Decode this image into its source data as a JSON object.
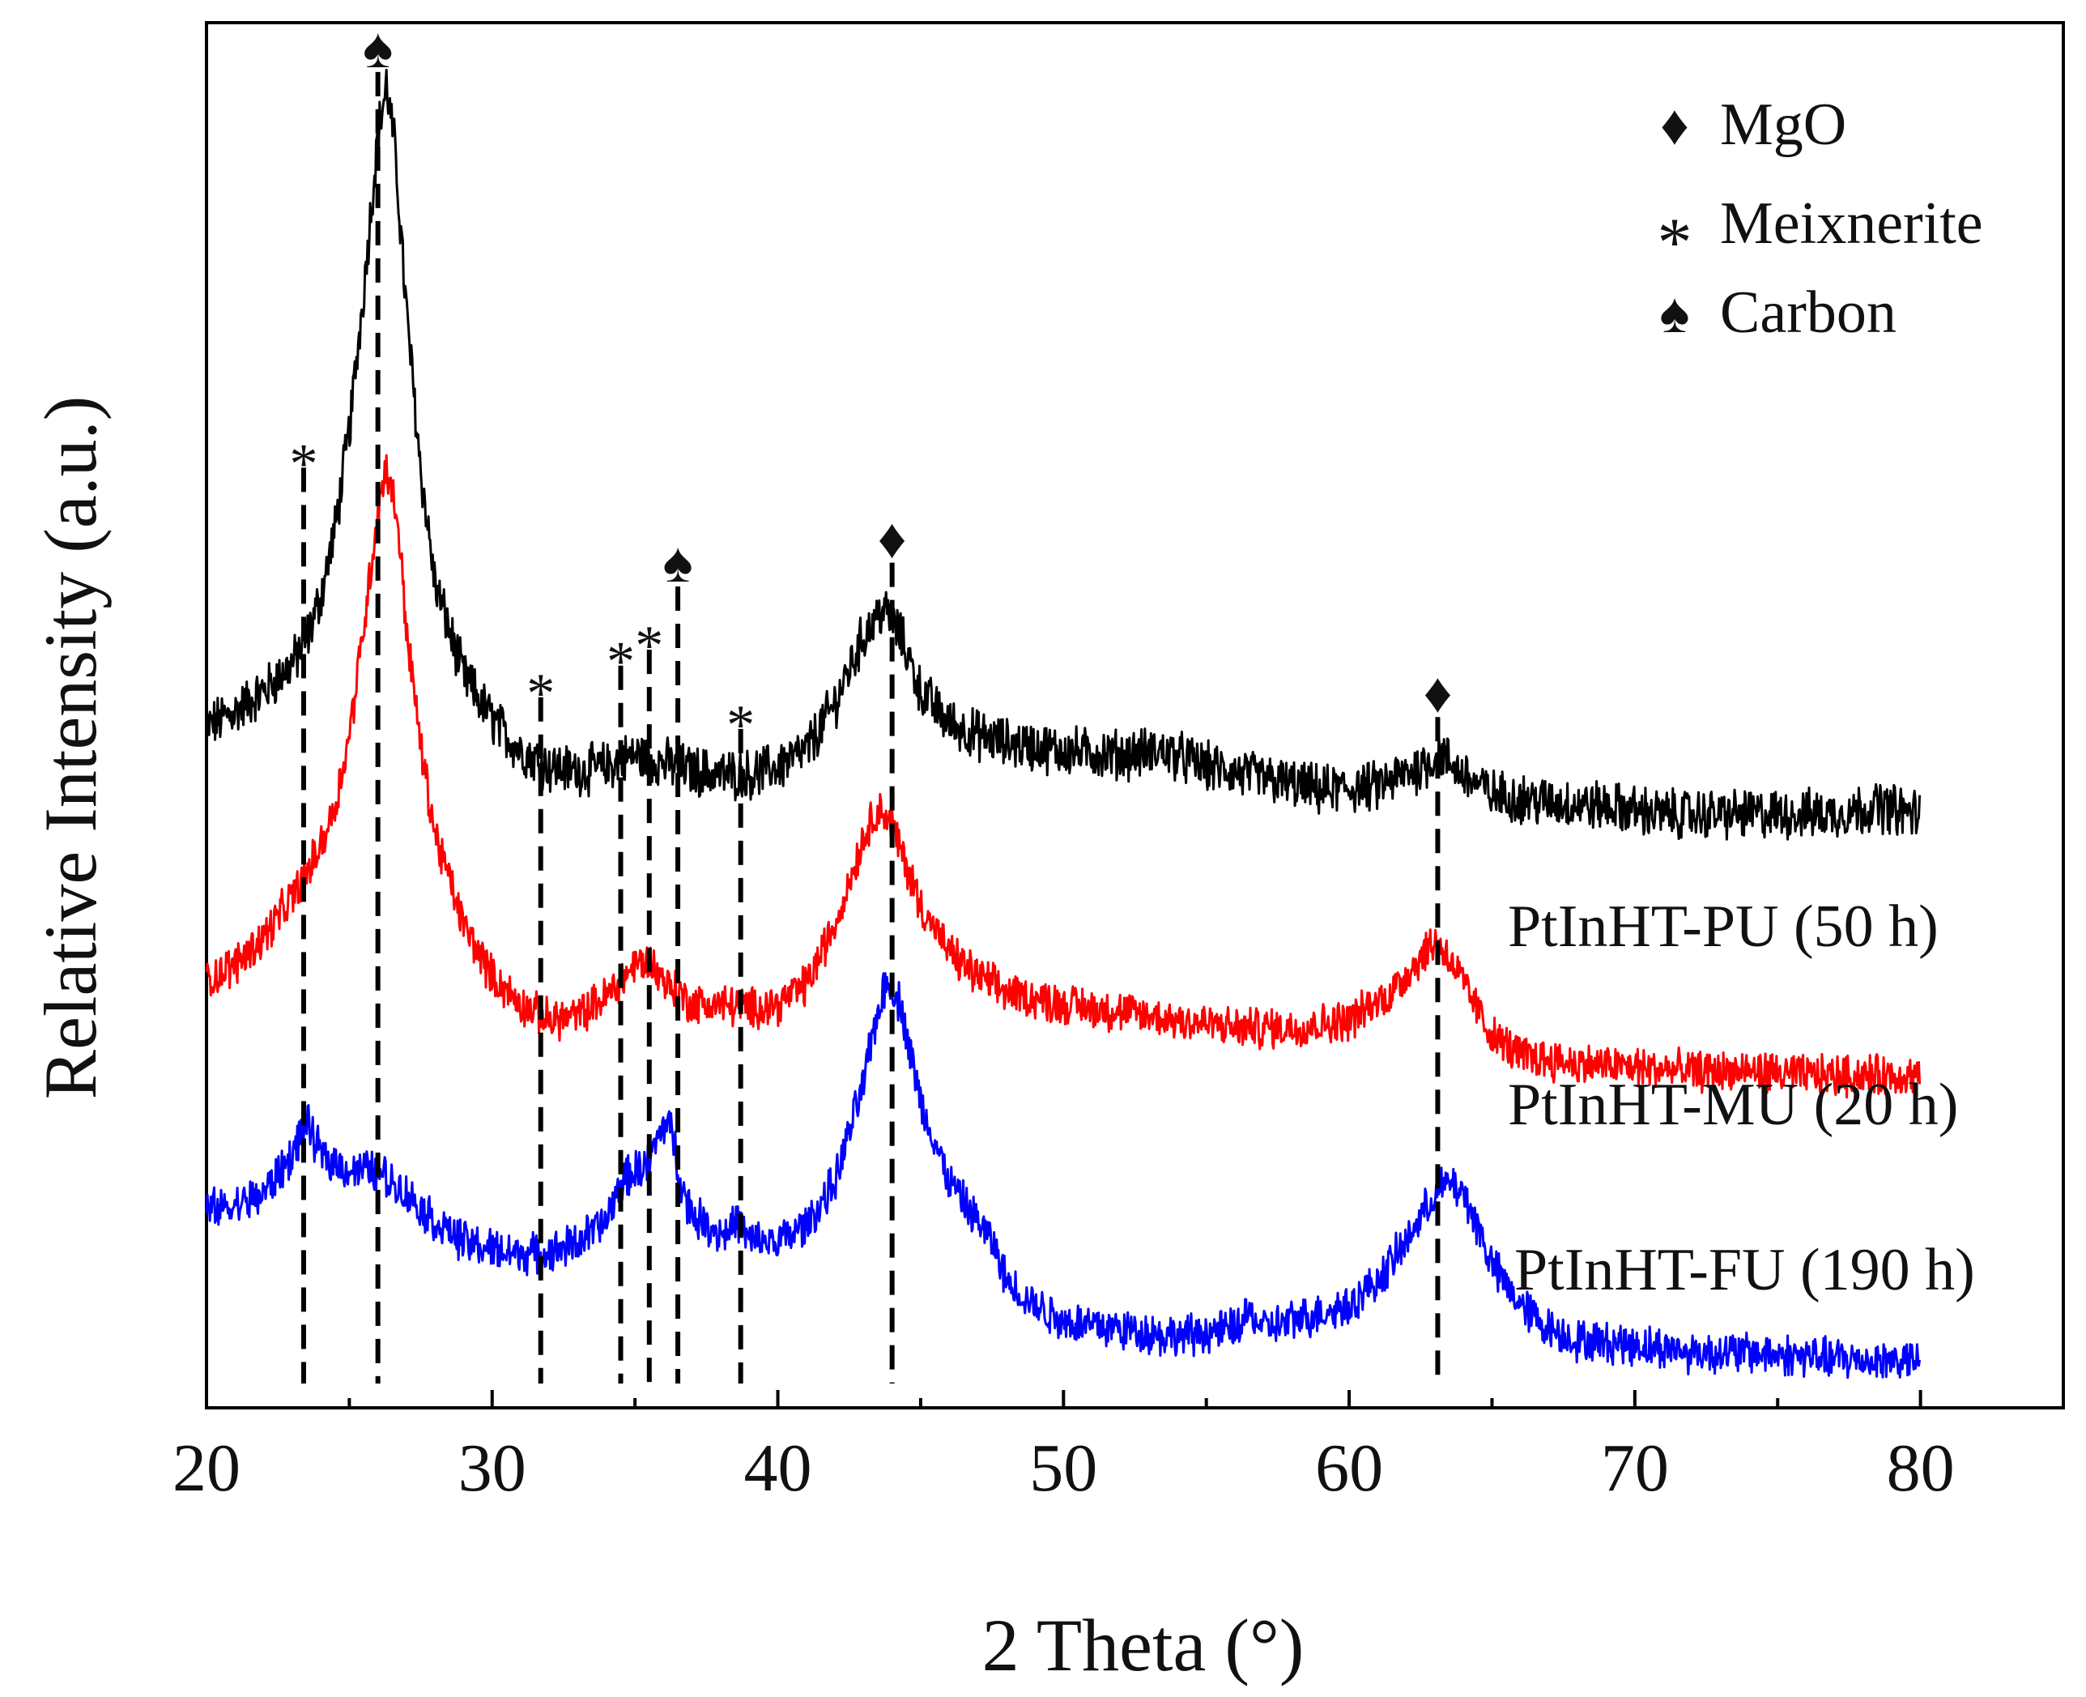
{
  "chart_data": {
    "type": "line",
    "title": "",
    "xlabel": "2 Theta (°)",
    "ylabel": "Relative Intensity (a.u.)",
    "xlim": [
      20,
      85
    ],
    "x_ticks": [
      20,
      30,
      40,
      50,
      60,
      70,
      80
    ],
    "x_tick_labels": [
      "20",
      "30",
      "40",
      "50",
      "60",
      "70",
      "80"
    ],
    "y_ticks": "none (arbitrary units)",
    "grid": false,
    "legend": {
      "placement": "top-right",
      "entries": [
        {
          "symbol": "♦",
          "symbol_name": "diamond",
          "label": "MgO"
        },
        {
          "symbol": "*",
          "symbol_name": "asterisk",
          "label": "Meixnerite"
        },
        {
          "symbol": "♠",
          "symbol_name": "spade",
          "label": "Carbon"
        }
      ]
    },
    "series": [
      {
        "name": "PtInHT-PU (50 h)",
        "color": "#000000",
        "x": [
          20,
          21,
          22,
          23,
          23.5,
          24,
          24.5,
          25,
          25.5,
          26,
          26.3,
          26.6,
          27,
          27.5,
          28,
          29,
          30,
          31,
          32,
          33,
          34,
          35,
          36,
          37,
          38,
          39,
          40,
          41,
          42,
          43,
          43.7,
          44.3,
          45,
          46,
          47,
          48,
          50,
          52,
          53.5,
          55,
          57,
          59,
          61,
          62.5,
          63.2,
          64,
          65,
          67,
          69,
          71,
          73,
          75,
          77,
          78.5,
          80
        ],
        "values": [
          0.7,
          0.74,
          0.79,
          0.86,
          0.92,
          1.03,
          1.2,
          1.45,
          1.8,
          2.2,
          2.32,
          2.16,
          1.75,
          1.35,
          1.06,
          0.83,
          0.72,
          0.64,
          0.6,
          0.59,
          0.6,
          0.63,
          0.61,
          0.59,
          0.58,
          0.58,
          0.6,
          0.64,
          0.76,
          0.93,
          1.0,
          0.93,
          0.79,
          0.71,
          0.68,
          0.66,
          0.64,
          0.63,
          0.64,
          0.6,
          0.57,
          0.54,
          0.55,
          0.6,
          0.63,
          0.58,
          0.53,
          0.51,
          0.5,
          0.48,
          0.48,
          0.48,
          0.48,
          0.5,
          0.48
        ]
      },
      {
        "name": "PtInHT-MU (20 h)",
        "color": "#ff0000",
        "x": [
          20,
          21,
          22,
          23,
          23.5,
          24,
          24.5,
          25,
          25.5,
          26,
          26.3,
          26.7,
          27,
          27.5,
          28,
          29,
          30,
          31,
          32,
          33,
          34,
          35,
          35.5,
          36,
          37,
          38,
          39,
          40,
          41,
          42,
          43,
          43.5,
          44,
          45,
          46,
          47,
          48,
          50,
          52,
          54,
          56,
          58,
          60,
          61.5,
          62.5,
          63,
          63.5,
          64,
          65,
          66,
          68,
          70,
          72,
          74,
          76,
          78,
          80
        ],
        "values": [
          0.06,
          0.1,
          0.17,
          0.27,
          0.33,
          0.4,
          0.5,
          0.68,
          0.95,
          1.25,
          1.36,
          1.22,
          0.95,
          0.65,
          0.43,
          0.2,
          0.07,
          0.0,
          -0.04,
          -0.03,
          0.02,
          0.1,
          0.11,
          0.06,
          0.0,
          0.0,
          -0.01,
          0.0,
          0.05,
          0.2,
          0.42,
          0.5,
          0.45,
          0.25,
          0.13,
          0.07,
          0.03,
          0.0,
          -0.02,
          -0.04,
          -0.06,
          -0.06,
          -0.04,
          0.03,
          0.12,
          0.16,
          0.12,
          0.05,
          -0.08,
          -0.13,
          -0.15,
          -0.16,
          -0.17,
          -0.17,
          -0.18,
          -0.18,
          -0.18
        ]
      },
      {
        "name": "PtInHT-FU (190 h)",
        "color": "#0000ff",
        "x": [
          20,
          21,
          22,
          23,
          23.5,
          24,
          25,
          26,
          27,
          28,
          29,
          30,
          31,
          32,
          33,
          34,
          34.5,
          35,
          35.5,
          36,
          36.3,
          36.6,
          37,
          38,
          38.6,
          39,
          40,
          41,
          42,
          43,
          43.4,
          43.8,
          44.3,
          45,
          46,
          47,
          47.5,
          48,
          49,
          50,
          52,
          54,
          56,
          56.5,
          57,
          58,
          60,
          61,
          62,
          63,
          63.5,
          64,
          64.5,
          65,
          66,
          67,
          68,
          70,
          72,
          74,
          76,
          78,
          80
        ],
        "values": [
          -0.52,
          -0.51,
          -0.48,
          -0.38,
          -0.3,
          -0.38,
          -0.42,
          -0.42,
          -0.48,
          -0.55,
          -0.6,
          -0.62,
          -0.63,
          -0.63,
          -0.6,
          -0.55,
          -0.45,
          -0.42,
          -0.4,
          -0.3,
          -0.32,
          -0.45,
          -0.53,
          -0.58,
          -0.55,
          -0.6,
          -0.6,
          -0.56,
          -0.45,
          -0.2,
          -0.05,
          0.06,
          0.0,
          -0.25,
          -0.45,
          -0.55,
          -0.6,
          -0.7,
          -0.76,
          -0.8,
          -0.82,
          -0.84,
          -0.82,
          -0.78,
          -0.82,
          -0.8,
          -0.76,
          -0.7,
          -0.6,
          -0.48,
          -0.45,
          -0.48,
          -0.56,
          -0.66,
          -0.76,
          -0.82,
          -0.85,
          -0.86,
          -0.88,
          -0.88,
          -0.89,
          -0.9,
          -0.9
        ]
      }
    ],
    "reference_lines": [
      {
        "x": 23.4,
        "phase": "Meixnerite",
        "symbol": "*",
        "y_top": 1.38
      },
      {
        "x": 26.0,
        "phase": "Carbon",
        "symbol": "♠",
        "y_top": 2.38
      },
      {
        "x": 31.7,
        "phase": "Meixnerite",
        "symbol": "*",
        "y_top": 0.8
      },
      {
        "x": 34.5,
        "phase": "Meixnerite",
        "symbol": "*",
        "y_top": 0.88
      },
      {
        "x": 35.5,
        "phase": "Meixnerite",
        "symbol": "*",
        "y_top": 0.92
      },
      {
        "x": 36.5,
        "phase": "Carbon",
        "symbol": "♠",
        "y_top": 1.08
      },
      {
        "x": 38.7,
        "phase": "Meixnerite",
        "symbol": "*",
        "y_top": 0.72
      },
      {
        "x": 44.0,
        "phase": "MgO",
        "symbol": "♦",
        "y_top": 1.14
      },
      {
        "x": 63.1,
        "phase": "MgO",
        "symbol": "♦",
        "y_top": 0.75
      }
    ],
    "y_range": [
      -1.02,
      2.48
    ]
  }
}
